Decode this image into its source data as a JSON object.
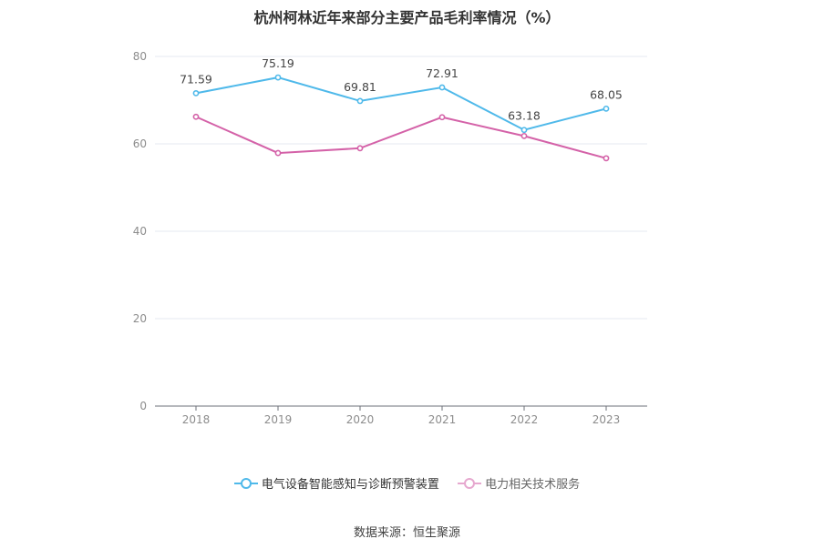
{
  "title": "杭州柯林近年来部分主要产品毛利率情况（%）",
  "source": "数据来源：恒生聚源",
  "colors": {
    "series1": "#4fb9ea",
    "series2": "#d462a8",
    "grid": "#e6e9f0",
    "axis": "#6e7079",
    "tick": "#8c8c8c",
    "label": "#444444"
  },
  "chart_data": {
    "type": "line",
    "categories": [
      "2018",
      "2019",
      "2020",
      "2021",
      "2022",
      "2023"
    ],
    "ylim": [
      0,
      80
    ],
    "yticks": [
      0,
      20,
      40,
      60,
      80
    ],
    "grid": true,
    "legend_position": "bottom",
    "series": [
      {
        "name": "电气设备智能感知与诊断预警装置",
        "values": [
          71.59,
          75.19,
          69.81,
          72.91,
          63.18,
          68.05
        ],
        "labels": [
          "71.59",
          "75.19",
          "69.81",
          "72.91",
          "63.18",
          "68.05"
        ]
      },
      {
        "name": "电力相关技术服务",
        "values": [
          66.2,
          57.9,
          59.0,
          66.1,
          61.8,
          56.7
        ]
      }
    ]
  }
}
